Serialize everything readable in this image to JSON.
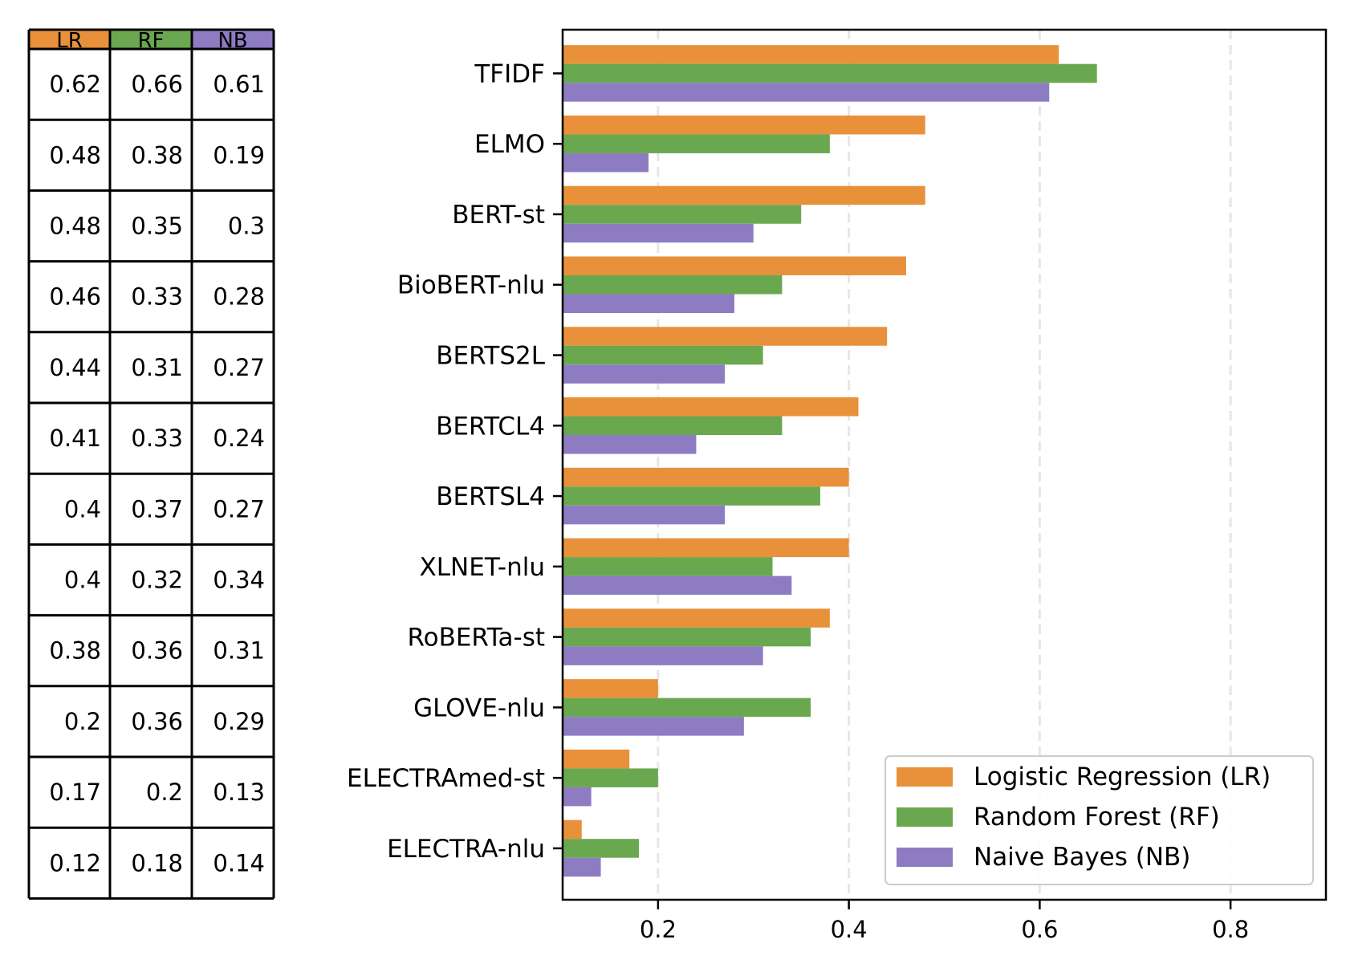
{
  "colors": {
    "LR": "#E8913A",
    "RF": "#6AA84F",
    "NB": "#8E7CC3",
    "grid": "#e6e6e6",
    "border": "#000000"
  },
  "chart_data": [
    {
      "type": "table",
      "columns": [
        "LR",
        "RF",
        "NB"
      ],
      "rows": [
        [
          "0.62",
          "0.66",
          "0.61"
        ],
        [
          "0.48",
          "0.38",
          "0.19"
        ],
        [
          "0.48",
          "0.35",
          "0.3"
        ],
        [
          "0.46",
          "0.33",
          "0.28"
        ],
        [
          "0.44",
          "0.31",
          "0.27"
        ],
        [
          "0.41",
          "0.33",
          "0.24"
        ],
        [
          "0.4",
          "0.37",
          "0.27"
        ],
        [
          "0.4",
          "0.32",
          "0.34"
        ],
        [
          "0.38",
          "0.36",
          "0.31"
        ],
        [
          "0.2",
          "0.36",
          "0.29"
        ],
        [
          "0.17",
          "0.2",
          "0.13"
        ],
        [
          "0.12",
          "0.18",
          "0.14"
        ]
      ]
    },
    {
      "type": "bar",
      "orientation": "horizontal",
      "categories": [
        "TFIDF",
        "ELMO",
        "BERT-st",
        "BioBERT-nlu",
        "BERTS2L",
        "BERTCL4",
        "BERTSL4",
        "XLNET-nlu",
        "RoBERTa-st",
        "GLOVE-nlu",
        "ELECTRAmed-st",
        "ELECTRA-nlu"
      ],
      "series": [
        {
          "name": "Logistic Regression (LR)",
          "key": "LR",
          "values": [
            0.62,
            0.48,
            0.48,
            0.46,
            0.44,
            0.41,
            0.4,
            0.4,
            0.38,
            0.2,
            0.17,
            0.12
          ]
        },
        {
          "name": "Random Forest (RF)",
          "key": "RF",
          "values": [
            0.66,
            0.38,
            0.35,
            0.33,
            0.31,
            0.33,
            0.37,
            0.32,
            0.36,
            0.36,
            0.2,
            0.18
          ]
        },
        {
          "name": "Naive Bayes (NB)",
          "key": "NB",
          "values": [
            0.61,
            0.19,
            0.3,
            0.28,
            0.27,
            0.24,
            0.27,
            0.34,
            0.31,
            0.29,
            0.13,
            0.14
          ]
        }
      ],
      "xlim": [
        0.1,
        0.9
      ],
      "xticks": [
        "0.2",
        "0.4",
        "0.6",
        "0.8"
      ],
      "grid": "vertical dashed",
      "legend": "lower-right",
      "title": "",
      "xlabel": "",
      "ylabel": ""
    }
  ]
}
